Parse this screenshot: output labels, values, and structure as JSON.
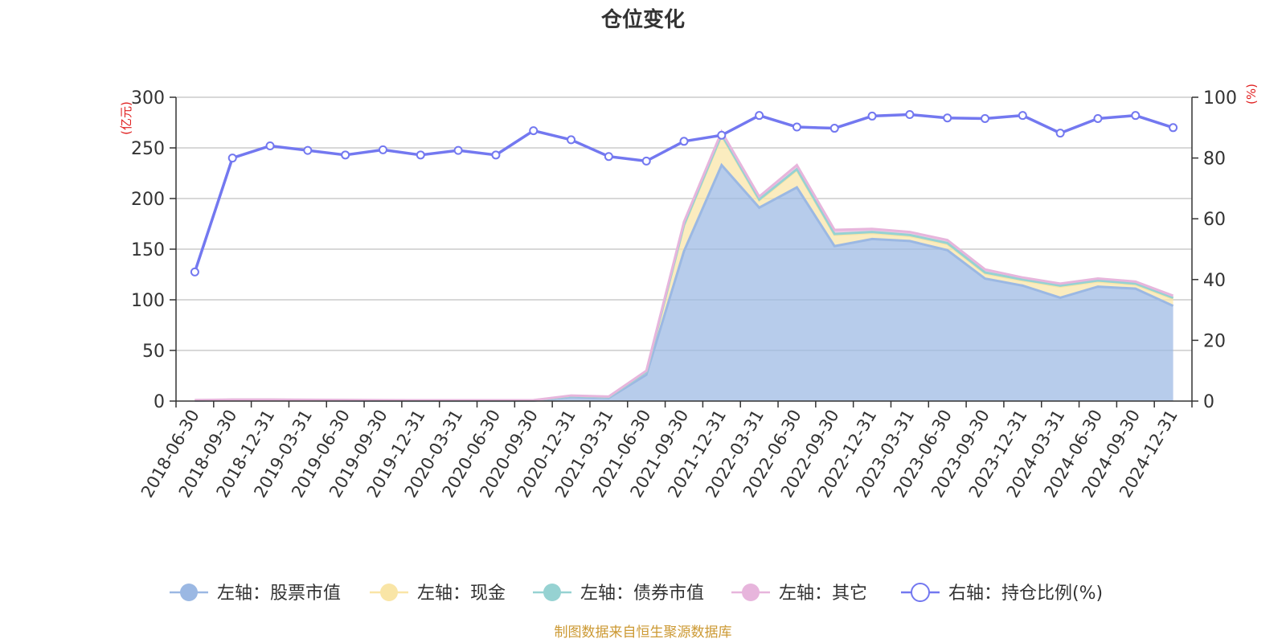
{
  "chart_data": {
    "type": "area",
    "title": "仓位变化",
    "left_axis_unit": "(亿元)",
    "right_axis_unit": "(%)",
    "left_ylim": [
      0,
      300
    ],
    "left_yticks": [
      "0",
      "50",
      "100",
      "150",
      "200",
      "250",
      "300"
    ],
    "right_ylim": [
      0,
      100
    ],
    "right_yticks": [
      "0",
      "20",
      "40",
      "60",
      "80",
      "100"
    ],
    "grid": true,
    "legend_position": "bottom",
    "categories": [
      "2018-06-30",
      "2018-09-30",
      "2018-12-31",
      "2019-03-31",
      "2019-06-30",
      "2019-09-30",
      "2019-12-31",
      "2020-03-31",
      "2020-06-30",
      "2020-09-30",
      "2020-12-31",
      "2021-03-31",
      "2021-06-30",
      "2021-09-30",
      "2021-12-31",
      "2022-03-31",
      "2022-06-30",
      "2022-09-30",
      "2022-12-31",
      "2023-03-31",
      "2023-06-30",
      "2023-09-30",
      "2023-12-31",
      "2024-03-31",
      "2024-06-30",
      "2024-09-30",
      "2024-12-31"
    ],
    "series": [
      {
        "name": "左轴：股票市值",
        "axis": "left",
        "color": "#9bb8e3",
        "values": [
          0.5,
          1,
          1,
          0.8,
          0.6,
          0.4,
          0.3,
          0.3,
          0.3,
          0.4,
          4,
          3,
          26,
          148,
          233,
          191,
          211,
          153,
          160,
          158,
          149,
          121,
          114,
          102,
          113,
          111,
          94
        ]
      },
      {
        "name": "左轴：现金",
        "axis": "left",
        "color": "#f9e5a6",
        "values": [
          0.3,
          0.3,
          0.3,
          0.3,
          0.3,
          0.3,
          0.3,
          0.3,
          0.3,
          0.3,
          1,
          1,
          3,
          25,
          29,
          7,
          17,
          11,
          6,
          5,
          6,
          5,
          5,
          11,
          5,
          4,
          7
        ]
      },
      {
        "name": "左轴：债券市值",
        "axis": "left",
        "color": "#96d2d2",
        "values": [
          0,
          0,
          0,
          0,
          0,
          0,
          0,
          0,
          0,
          0,
          0,
          0,
          0,
          1,
          1,
          1,
          1,
          1,
          1,
          1,
          1,
          1,
          1,
          1,
          1,
          1,
          1
        ]
      },
      {
        "name": "左轴：其它",
        "axis": "left",
        "color": "#e7b5dc",
        "values": [
          0.2,
          0.2,
          0.2,
          0.2,
          0.2,
          0.2,
          0.2,
          0.2,
          0.2,
          0.2,
          0.5,
          0.5,
          1,
          3,
          3,
          3,
          4,
          4,
          3,
          3,
          3,
          3,
          2,
          2,
          2,
          2,
          2
        ]
      },
      {
        "name": "右轴：持仓比例(%)",
        "axis": "right",
        "type": "line",
        "color": "#7378f0",
        "values": [
          42.5,
          80,
          84,
          82.5,
          81,
          82.7,
          81,
          82.5,
          81,
          89,
          86,
          80.5,
          79,
          85.5,
          87.5,
          94,
          90.2,
          89.8,
          93.8,
          94.3,
          93.2,
          93,
          94,
          88.2,
          93,
          94,
          90
        ]
      }
    ]
  },
  "footer": {
    "source": "制图数据来自恒生聚源数据库",
    "source_color": "#cc9933"
  }
}
